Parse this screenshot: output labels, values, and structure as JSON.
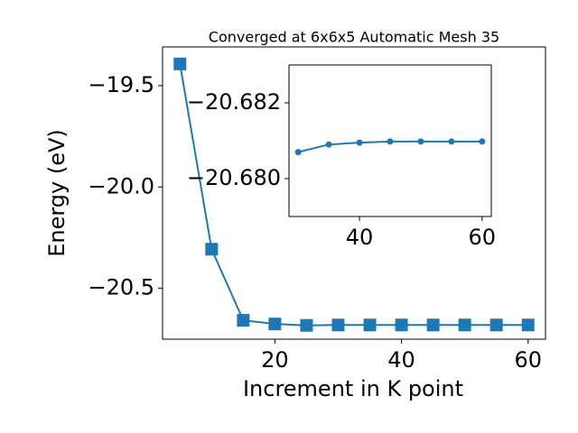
{
  "chart_data": [
    {
      "type": "line",
      "title": "Converged at 6x6x5 Automatic Mesh 35",
      "xlabel": "Increment in K point",
      "ylabel": "Energy (eV)",
      "x": [
        5,
        10,
        15,
        20,
        25,
        30,
        35,
        40,
        45,
        50,
        55,
        60
      ],
      "series": [
        {
          "color": "#1f77b4",
          "marker": "square",
          "values": [
            -19.393,
            -20.307,
            -20.658,
            -20.676,
            -20.683,
            -20.681,
            -20.681,
            -20.681,
            -20.681,
            -20.681,
            -20.681,
            -20.681
          ]
        }
      ],
      "xlim": [
        2.25,
        62.75
      ],
      "ylim": [
        -20.751,
        -19.309
      ],
      "xticks": [
        20,
        40,
        60
      ],
      "yticks": [
        {
          "value": -19.5,
          "label": "−19.5"
        },
        {
          "value": -20.0,
          "label": "−20.0"
        },
        {
          "value": -20.5,
          "label": "−20.5"
        }
      ]
    },
    {
      "type": "line",
      "x": [
        30,
        35,
        40,
        45,
        50,
        55,
        60
      ],
      "series": [
        {
          "color": "#1f77b4",
          "marker": "circle",
          "values": [
            -20.6807,
            -20.6809,
            -20.68095,
            -20.68098,
            -20.68098,
            -20.68098,
            -20.68098
          ]
        }
      ],
      "xlim": [
        28.5,
        61.5
      ],
      "ylim": [
        -20.679,
        -20.683
      ],
      "xticks": [
        40,
        60
      ],
      "yticks": [
        {
          "value": -20.682,
          "label": "−20.682"
        },
        {
          "value": -20.68,
          "label": "−20.680"
        }
      ]
    }
  ]
}
